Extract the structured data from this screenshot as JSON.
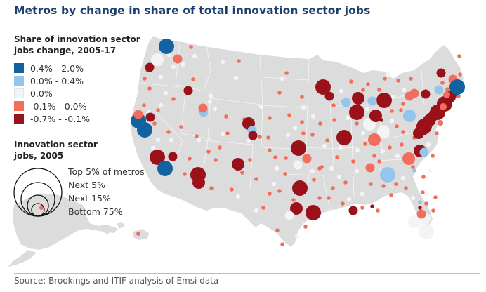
{
  "title": "Metros by change in share of total innovation sector jobs",
  "source": "Source: Brookings and ITIF analysis of Emsi data",
  "colors": {
    "land": "#dcdcdc",
    "border": "#f5f5f5",
    "title": "#1d3f6e",
    "strong_gain": "#11629e",
    "gain": "#93c6ea",
    "neutral": "#f4f4f6",
    "loss": "#f26d5b",
    "strong_loss": "#9b1119"
  },
  "legend_color": {
    "title_line1": "Share of innovation sector",
    "title_line2": "jobs change, 2005-17",
    "items": [
      {
        "key": "strong_gain",
        "label": "0.4% -  2.0%"
      },
      {
        "key": "gain",
        "label": "0.0% -  0.4%"
      },
      {
        "key": "neutral",
        "label": "0.0%"
      },
      {
        "key": "loss",
        "label": "-0.1% -  0.0%"
      },
      {
        "key": "strong_loss",
        "label": "-0.7% - -0.1%"
      }
    ]
  },
  "legend_size": {
    "title_line1": "Innovation sector",
    "title_line2": "jobs, 2005",
    "items": [
      {
        "label": "Top 5% of metros"
      },
      {
        "label": "Next 5%"
      },
      {
        "label": "Next 15%"
      },
      {
        "label": "Bottom 75%"
      }
    ]
  },
  "chart_data": {
    "type": "scatter",
    "subtype": "proportional-symbol-map",
    "title": "Metros by change in share of total innovation sector jobs",
    "region": "United States (lower 48, Alaska, Hawaii)",
    "color_variable": "Share of innovation sector jobs change, 2005-17",
    "size_variable": "Innovation sector jobs, 2005",
    "color_classes": [
      "0.4% - 2.0%",
      "0.0% - 0.4%",
      "0.0%",
      "-0.1% - 0.0%",
      "-0.7% - -0.1%"
    ],
    "size_classes": [
      "Top 5% of metros",
      "Next 5%",
      "Next 15%",
      "Bottom 75%"
    ],
    "points": [
      {
        "area": "Seattle",
        "size": "Top 5% of metros",
        "class": "0.4% - 2.0%"
      },
      {
        "area": "Portland",
        "size": "Next 5%",
        "class": "0.0%"
      },
      {
        "area": "Spokane",
        "size": "Next 15%",
        "class": "-0.1% - 0.0%"
      },
      {
        "area": "Eugene",
        "size": "Next 15%",
        "class": "-0.7% - -0.1%"
      },
      {
        "area": "Boise",
        "size": "Next 15%",
        "class": "-0.7% - -0.1%"
      },
      {
        "area": "Salt Lake City",
        "size": "Next 15%",
        "class": "0.0% - 0.4%"
      },
      {
        "area": "Ogden",
        "size": "Next 15%",
        "class": "-0.1% - 0.0%"
      },
      {
        "area": "Sacramento",
        "size": "Next 15%",
        "class": "-0.7% - -0.1%"
      },
      {
        "area": "San Francisco",
        "size": "Top 5% of metros",
        "class": "0.4% - 2.0%"
      },
      {
        "area": "San Jose",
        "size": "Top 5% of metros",
        "class": "0.4% - 2.0%"
      },
      {
        "area": "Santa Rosa",
        "size": "Next 15%",
        "class": "-0.1% - 0.0%"
      },
      {
        "area": "Los Angeles",
        "size": "Top 5% of metros",
        "class": "-0.7% - -0.1%"
      },
      {
        "area": "Riverside",
        "size": "Next 15%",
        "class": "-0.7% - -0.1%"
      },
      {
        "area": "San Diego",
        "size": "Top 5% of metros",
        "class": "0.4% - 2.0%"
      },
      {
        "area": "Phoenix",
        "size": "Top 5% of metros",
        "class": "-0.7% - -0.1%"
      },
      {
        "area": "Tucson",
        "size": "Next 5%",
        "class": "-0.7% - -0.1%"
      },
      {
        "area": "Albuquerque",
        "size": "Next 5%",
        "class": "-0.7% - -0.1%"
      },
      {
        "area": "Denver",
        "size": "Next 5%",
        "class": "-0.7% - -0.1%"
      },
      {
        "area": "Boulder",
        "size": "Next 15%",
        "class": "0.0% - 0.4%"
      },
      {
        "area": "Colorado Springs",
        "size": "Next 15%",
        "class": "-0.7% - -0.1%"
      },
      {
        "area": "Minneapolis",
        "size": "Top 5% of metros",
        "class": "-0.7% - -0.1%"
      },
      {
        "area": "Rochester MN",
        "size": "Next 15%",
        "class": "-0.7% - -0.1%"
      },
      {
        "area": "Omaha",
        "size": "Next 15%",
        "class": "-0.7% - -0.1%"
      },
      {
        "area": "Kansas City",
        "size": "Top 5% of metros",
        "class": "-0.7% - -0.1%"
      },
      {
        "area": "Madison",
        "size": "Next 15%",
        "class": "0.0% - 0.4%"
      },
      {
        "area": "Milwaukee",
        "size": "Next 5%",
        "class": "-0.7% - -0.1%"
      },
      {
        "area": "Chicago",
        "size": "Top 5% of metros",
        "class": "-0.7% - -0.1%"
      },
      {
        "area": "Detroit",
        "size": "Top 5% of metros",
        "class": "-0.7% - -0.1%"
      },
      {
        "area": "Ann Arbor",
        "size": "Next 15%",
        "class": "0.0% - 0.4%"
      },
      {
        "area": "St. Louis",
        "size": "Top 5% of metros",
        "class": "-0.7% - -0.1%"
      },
      {
        "area": "Indianapolis",
        "size": "Next 5%",
        "class": "0.0%"
      },
      {
        "area": "Columbus",
        "size": "Next 5%",
        "class": "0.0%"
      },
      {
        "area": "Cleveland",
        "size": "Next 5%",
        "class": "-0.7% - -0.1%"
      },
      {
        "area": "Pittsburgh",
        "size": "Next 5%",
        "class": "0.0% - 0.4%"
      },
      {
        "area": "Cincinnati",
        "size": "Next 5%",
        "class": "-0.1% - 0.0%"
      },
      {
        "area": "Dallas",
        "size": "Top 5% of metros",
        "class": "-0.7% - -0.1%"
      },
      {
        "area": "Austin",
        "size": "Next 5%",
        "class": "-0.7% - -0.1%"
      },
      {
        "area": "Houston",
        "size": "Top 5% of metros",
        "class": "-0.7% - -0.1%"
      },
      {
        "area": "San Antonio",
        "size": "Next 15%",
        "class": "0.0%"
      },
      {
        "area": "Oklahoma City",
        "size": "Next 15%",
        "class": "-0.1% - 0.0%"
      },
      {
        "area": "Tulsa",
        "size": "Next 15%",
        "class": "0.0%"
      },
      {
        "area": "New Orleans",
        "size": "Next 15%",
        "class": "-0.7% - -0.1%"
      },
      {
        "area": "Nashville",
        "size": "Next 15%",
        "class": "-0.1% - 0.0%"
      },
      {
        "area": "Atlanta",
        "size": "Top 5% of metros",
        "class": "0.0% - 0.4%"
      },
      {
        "area": "Charlotte",
        "size": "Next 5%",
        "class": "-0.1% - 0.0%"
      },
      {
        "area": "Raleigh",
        "size": "Next 5%",
        "class": "-0.7% - -0.1%"
      },
      {
        "area": "Durham",
        "size": "Next 15%",
        "class": "0.0% - 0.4%"
      },
      {
        "area": "Washington DC",
        "size": "Top 5% of metros",
        "class": "-0.7% - -0.1%"
      },
      {
        "area": "Baltimore",
        "size": "Next 5%",
        "class": "-0.7% - -0.1%"
      },
      {
        "area": "Philadelphia",
        "size": "Top 5% of metros",
        "class": "-0.7% - -0.1%"
      },
      {
        "area": "New York",
        "size": "Top 5% of metros",
        "class": "-0.7% - -0.1%"
      },
      {
        "area": "Hartford",
        "size": "Next 5%",
        "class": "-0.7% - -0.1%"
      },
      {
        "area": "Boston",
        "size": "Top 5% of metros",
        "class": "0.4% - 2.0%"
      },
      {
        "area": "Albany",
        "size": "Next 15%",
        "class": "0.0% - 0.4%"
      },
      {
        "area": "Rochester NY",
        "size": "Next 15%",
        "class": "-0.1% - 0.0%"
      },
      {
        "area": "Buffalo",
        "size": "Next 15%",
        "class": "-0.1% - 0.0%"
      },
      {
        "area": "Syracuse",
        "size": "Next 15%",
        "class": "-0.7% - -0.1%"
      },
      {
        "area": "Burlington",
        "size": "Next 15%",
        "class": "-0.7% - -0.1%"
      },
      {
        "area": "Manchester",
        "size": "Next 15%",
        "class": "-0.1% - 0.0%"
      },
      {
        "area": "Jacksonville",
        "size": "Next 15%",
        "class": "-0.1% - 0.0%"
      },
      {
        "area": "Orlando",
        "size": "Next 5%",
        "class": "0.0%"
      },
      {
        "area": "Tampa",
        "size": "Next 5%",
        "class": "0.0%"
      },
      {
        "area": "Miami",
        "size": "Top 5% of metros",
        "class": "0.0%"
      },
      {
        "area": "Anchorage",
        "size": "Bottom 75%",
        "class": "-0.1% - 0.0%"
      },
      {
        "area": "Honolulu",
        "size": "Bottom 75%",
        "class": "-0.1% - 0.0%"
      }
    ]
  }
}
